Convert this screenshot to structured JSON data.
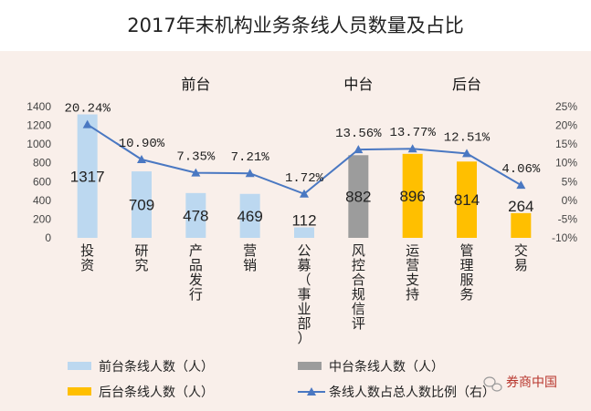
{
  "chart_data": {
    "type": "bar",
    "title": "2017年末机构业务条线人员数量及占比",
    "categories": [
      "投资",
      "研究",
      "产品发行",
      "营销",
      "公募（事业部）",
      "风控合规信评",
      "运营支持",
      "管理服务",
      "交易"
    ],
    "segments": [
      {
        "label": "前台",
        "group": "front"
      },
      {
        "label": "中台",
        "group": "middle"
      },
      {
        "label": "后台",
        "group": "back"
      }
    ],
    "bar_groups": [
      "front",
      "front",
      "front",
      "front",
      "front",
      "middle",
      "back",
      "back",
      "back"
    ],
    "series": [
      {
        "name": "前台条线人数（人）",
        "group": "front",
        "color": "#bcd8f0"
      },
      {
        "name": "中台条线人数（人）",
        "group": "middle",
        "color": "#9c9c9c"
      },
      {
        "name": "后台条线人数（人）",
        "group": "back",
        "color": "#ffbf00"
      }
    ],
    "values": [
      1317,
      709,
      478,
      469,
      112,
      882,
      896,
      814,
      264
    ],
    "value_labels": [
      "1317",
      "709",
      "478",
      "469",
      "112",
      "882",
      "896",
      "814",
      "264"
    ],
    "line_series": {
      "name": "条线人数占总人数比例（右）",
      "axis": "right",
      "color": "#4a78c2",
      "values": [
        20.24,
        10.9,
        7.35,
        7.21,
        1.72,
        13.56,
        13.77,
        12.51,
        4.06
      ],
      "labels": [
        "20.24%",
        "10.90%",
        "7.35%",
        "7.21%",
        "1.72%",
        "13.56%",
        "13.77%",
        "12.51%",
        "4.06%"
      ]
    },
    "y_left": {
      "min": 0,
      "max": 1400,
      "step": 200,
      "ticks": [
        "0",
        "200",
        "400",
        "600",
        "800",
        "1000",
        "1200",
        "1400"
      ]
    },
    "y_right": {
      "min": -10,
      "max": 25,
      "step": 5,
      "ticks": [
        "-10%",
        "-5%",
        "0%",
        "5%",
        "10%",
        "15%",
        "20%",
        "25%"
      ]
    },
    "grid": false,
    "legend_position": "bottom"
  },
  "watermark": {
    "icon": "wechat-icon",
    "text": "券商中国"
  }
}
